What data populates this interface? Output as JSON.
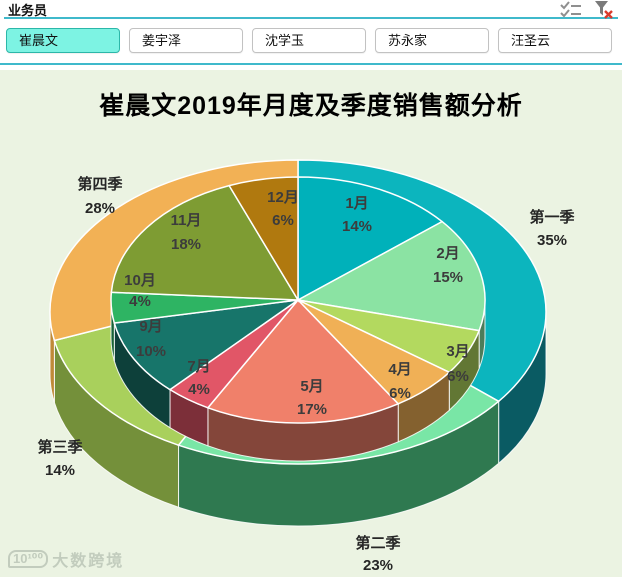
{
  "slicer": {
    "title": "业务员",
    "items": [
      {
        "label": "崔晨文",
        "selected": true
      },
      {
        "label": "姜宇泽",
        "selected": false
      },
      {
        "label": "沈学玉",
        "selected": false
      },
      {
        "label": "苏永家",
        "selected": false
      },
      {
        "label": "汪圣云",
        "selected": false
      }
    ],
    "icons": {
      "multi_select": "multi-select-icon",
      "clear_filter": "clear-filter-icon"
    },
    "accent_color": "#3FB9CB",
    "selected_fill": "#7DF3E3"
  },
  "chart_data": {
    "type": "pie",
    "title": "崔晨文2019年月度及季度销售额分析",
    "style": "3d-pie-with-quarter-ring",
    "background": "#EBF3E2",
    "legend_position": "none",
    "inner_series": {
      "name": "月度占比",
      "slices": [
        {
          "label": "1月",
          "value": 14,
          "display": "14%",
          "color": "#00B1BA"
        },
        {
          "label": "2月",
          "value": 15,
          "display": "15%",
          "color": "#8BE3A3"
        },
        {
          "label": "3月",
          "value": 6,
          "display": "6%",
          "color": "#B3D95F"
        },
        {
          "label": "4月",
          "value": 6,
          "display": "6%",
          "color": "#F0B056"
        },
        {
          "label": "5月",
          "value": 17,
          "display": "17%",
          "color": "#F0806A"
        },
        {
          "label": "7月",
          "value": 4,
          "display": "4%",
          "color": "#E15667"
        },
        {
          "label": "9月",
          "value": 10,
          "display": "10%",
          "color": "#17756A"
        },
        {
          "label": "10月",
          "value": 4,
          "display": "4%",
          "color": "#2EB463"
        },
        {
          "label": "11月",
          "value": 18,
          "display": "18%",
          "color": "#7E9C33"
        },
        {
          "label": "12月",
          "value": 6,
          "display": "6%",
          "color": "#B0790F"
        }
      ]
    },
    "outer_series": {
      "name": "季度占比",
      "slices": [
        {
          "label": "第一季",
          "value": 35,
          "display": "35%",
          "color": "#0CB5BE",
          "side_color": "#0A5B63"
        },
        {
          "label": "第二季",
          "value": 23,
          "display": "23%",
          "color": "#79E6A6",
          "side_color": "#2F7950"
        },
        {
          "label": "第三季",
          "value": 14,
          "display": "14%",
          "color": "#A9D05C",
          "side_color": "#74903A"
        },
        {
          "label": "第四季",
          "value": 28,
          "display": "28%",
          "color": "#F2B155",
          "side_color": "#BF8A38"
        }
      ]
    },
    "label_color": "#3C3C3C"
  },
  "watermark": {
    "logo": "10¹⁰⁰",
    "text": "大数跨境"
  }
}
